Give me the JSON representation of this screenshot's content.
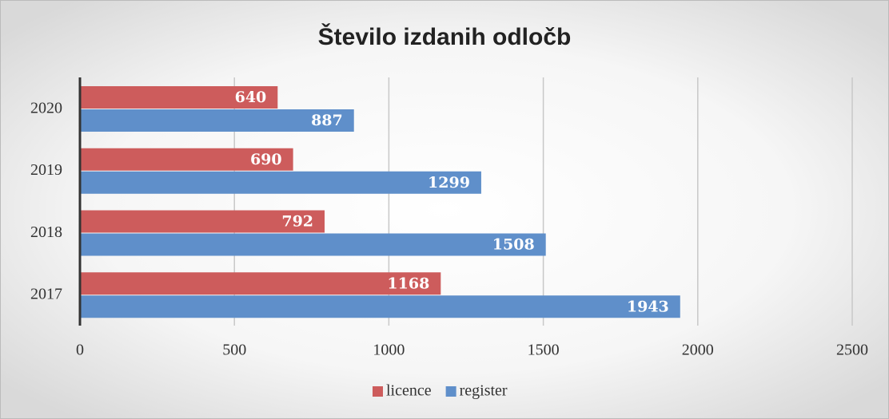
{
  "chart_data": {
    "type": "hbar",
    "title": "Število izdanih odločb",
    "categories": [
      "2017",
      "2018",
      "2019",
      "2020"
    ],
    "series": [
      {
        "name": "licence",
        "color": "#cd5c5c",
        "values": [
          1168,
          792,
          690,
          640
        ]
      },
      {
        "name": "register",
        "color": "#5f8fca",
        "values": [
          1943,
          1508,
          1299,
          887
        ]
      }
    ],
    "xlim": [
      0,
      2500
    ],
    "xticks": [
      0,
      500,
      1000,
      1500,
      2000,
      2500
    ],
    "grid": true,
    "legend": "bottom"
  }
}
